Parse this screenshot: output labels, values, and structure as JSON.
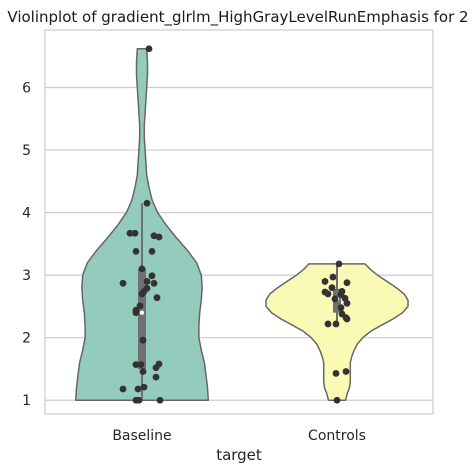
{
  "chart_data": {
    "type": "violin",
    "title": "Violinplot of gradient_glrlm_HighGrayLevelRunEmphasis for 2",
    "xlabel": "target",
    "ylabel": "",
    "categories": [
      "Baseline",
      "Controls"
    ],
    "ylim": [
      0.78,
      6.92
    ],
    "yticks": [
      1,
      2,
      3,
      4,
      5,
      6
    ],
    "grid": "horizontal",
    "colors": {
      "Baseline": "#93cbbd",
      "Controls": "#fafab4",
      "outline": "#666666",
      "box": "#707070",
      "points": "#333333",
      "grid": "#cccccc",
      "frame": "#cccccc"
    },
    "series": [
      {
        "name": "Baseline",
        "summary": {
          "q1": 1.5,
          "median": 2.4,
          "q3": 3.1,
          "whisker_low": 1.0,
          "whisker_high": 4.15
        },
        "density": [
          [
            1.0,
            0.85
          ],
          [
            1.2,
            0.84
          ],
          [
            1.4,
            0.82
          ],
          [
            1.6,
            0.8
          ],
          [
            1.8,
            0.76
          ],
          [
            2.0,
            0.73
          ],
          [
            2.2,
            0.73
          ],
          [
            2.4,
            0.74
          ],
          [
            2.6,
            0.76
          ],
          [
            2.8,
            0.77
          ],
          [
            3.0,
            0.76
          ],
          [
            3.2,
            0.7
          ],
          [
            3.4,
            0.58
          ],
          [
            3.6,
            0.44
          ],
          [
            3.8,
            0.31
          ],
          [
            4.0,
            0.2
          ],
          [
            4.2,
            0.13
          ],
          [
            4.4,
            0.09
          ],
          [
            4.6,
            0.06
          ],
          [
            4.8,
            0.05
          ],
          [
            5.0,
            0.04
          ],
          [
            5.2,
            0.03
          ],
          [
            5.4,
            0.03
          ],
          [
            5.6,
            0.04
          ],
          [
            5.8,
            0.05
          ],
          [
            6.0,
            0.06
          ],
          [
            6.2,
            0.07
          ],
          [
            6.4,
            0.07
          ],
          [
            6.62,
            0.06
          ]
        ],
        "points": [
          [
            0.07,
            6.62
          ],
          [
            0.05,
            4.15
          ],
          [
            -0.12,
            3.67
          ],
          [
            -0.07,
            3.67
          ],
          [
            0.12,
            3.63
          ],
          [
            0.17,
            3.61
          ],
          [
            -0.06,
            3.38
          ],
          [
            0.1,
            3.38
          ],
          [
            0.0,
            3.1
          ],
          [
            0.1,
            2.99
          ],
          [
            0.05,
            2.9
          ],
          [
            -0.19,
            2.87
          ],
          [
            0.12,
            2.87
          ],
          [
            0.05,
            2.79
          ],
          [
            0.02,
            2.74
          ],
          [
            0.0,
            2.7
          ],
          [
            0.15,
            2.64
          ],
          [
            -0.02,
            2.51
          ],
          [
            -0.06,
            2.44
          ],
          [
            -0.06,
            2.4
          ],
          [
            0.01,
            1.96
          ],
          [
            0.17,
            1.58
          ],
          [
            -0.06,
            1.57
          ],
          [
            -0.01,
            1.57
          ],
          [
            0.14,
            1.52
          ],
          [
            0.01,
            1.46
          ],
          [
            0.14,
            1.37
          ],
          [
            0.02,
            1.21
          ],
          [
            -0.19,
            1.18
          ],
          [
            -0.04,
            1.18
          ],
          [
            -0.06,
            1.0
          ],
          [
            -0.03,
            1.0
          ],
          [
            0.18,
            1.0
          ]
        ]
      },
      {
        "name": "Controls",
        "summary": {
          "q1": 2.4,
          "median": 2.62,
          "q3": 2.78,
          "whisker_low": 2.2,
          "whisker_high": 3.18
        },
        "density": [
          [
            1.0,
            0.11
          ],
          [
            1.1,
            0.13
          ],
          [
            1.2,
            0.16
          ],
          [
            1.3,
            0.17
          ],
          [
            1.4,
            0.17
          ],
          [
            1.5,
            0.17
          ],
          [
            1.6,
            0.17
          ],
          [
            1.7,
            0.19
          ],
          [
            1.8,
            0.22
          ],
          [
            1.9,
            0.26
          ],
          [
            2.0,
            0.33
          ],
          [
            2.1,
            0.43
          ],
          [
            2.2,
            0.57
          ],
          [
            2.3,
            0.72
          ],
          [
            2.4,
            0.84
          ],
          [
            2.5,
            0.91
          ],
          [
            2.6,
            0.91
          ],
          [
            2.7,
            0.86
          ],
          [
            2.8,
            0.76
          ],
          [
            2.9,
            0.64
          ],
          [
            3.0,
            0.52
          ],
          [
            3.1,
            0.42
          ],
          [
            3.18,
            0.36
          ]
        ],
        "points": [
          [
            0.02,
            3.18
          ],
          [
            -0.04,
            2.97
          ],
          [
            -0.12,
            2.9
          ],
          [
            0.1,
            2.88
          ],
          [
            -0.05,
            2.8
          ],
          [
            -0.12,
            2.73
          ],
          [
            0.05,
            2.74
          ],
          [
            -0.09,
            2.7
          ],
          [
            0.04,
            2.69
          ],
          [
            -0.02,
            2.62
          ],
          [
            0.08,
            2.63
          ],
          [
            0.1,
            2.55
          ],
          [
            0.04,
            2.48
          ],
          [
            0.05,
            2.38
          ],
          [
            0.09,
            2.32
          ],
          [
            0.1,
            2.3
          ],
          [
            -0.09,
            2.22
          ],
          [
            -0.01,
            2.22
          ],
          [
            0.09,
            1.46
          ],
          [
            -0.01,
            1.43
          ],
          [
            0.0,
            1.0
          ]
        ]
      }
    ]
  }
}
